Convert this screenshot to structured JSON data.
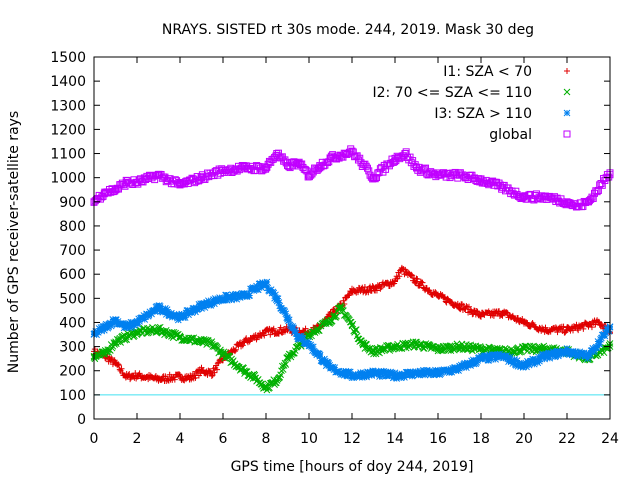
{
  "chart_data": {
    "type": "scatter",
    "title": "NRAYS. SISTED rt 30s mode. 244, 2019. Mask 30 deg",
    "xlabel": "GPS time [hours of doy 244, 2019]",
    "ylabel": "Number of GPS receiver-satellite rays",
    "xlim": [
      0,
      24
    ],
    "ylim": [
      0,
      1500
    ],
    "xticks": [
      0,
      2,
      4,
      6,
      8,
      10,
      12,
      14,
      16,
      18,
      20,
      22,
      24
    ],
    "yticks": [
      0,
      100,
      200,
      300,
      400,
      500,
      600,
      700,
      800,
      900,
      1000,
      1100,
      1200,
      1300,
      1400,
      1500
    ],
    "legend_position": "top-right",
    "reference_line": {
      "y": 100,
      "color": "#40e0f0"
    },
    "series": [
      {
        "name": "I1: SZA < 70",
        "marker": "+",
        "color": "#e00000",
        "x": [
          0,
          0.5,
          1,
          1.5,
          2,
          3,
          4,
          4.5,
          5,
          5.5,
          6,
          7,
          8,
          9,
          10,
          10.5,
          11,
          11.5,
          12,
          13,
          14,
          14.3,
          15,
          16,
          17,
          18,
          19,
          20,
          21,
          22,
          23,
          23.5,
          24
        ],
        "values": [
          280,
          260,
          230,
          175,
          180,
          165,
          175,
          170,
          200,
          190,
          250,
          320,
          360,
          370,
          360,
          380,
          430,
          470,
          530,
          540,
          570,
          620,
          570,
          510,
          470,
          430,
          440,
          400,
          370,
          370,
          390,
          400,
          360
        ]
      },
      {
        "name": "I2: 70 <= SZA <= 110",
        "marker": "x",
        "color": "#00b000",
        "x": [
          0,
          0.5,
          1,
          1.5,
          2,
          3,
          4,
          5,
          5.5,
          6,
          7,
          7.5,
          8,
          8.5,
          9,
          10,
          11,
          11.5,
          12,
          12.5,
          13,
          14,
          15,
          16,
          17,
          18,
          19,
          20,
          21,
          22,
          23,
          24
        ],
        "values": [
          260,
          270,
          320,
          340,
          360,
          370,
          340,
          320,
          310,
          270,
          200,
          170,
          130,
          160,
          250,
          350,
          410,
          460,
          390,
          310,
          280,
          300,
          310,
          290,
          300,
          290,
          280,
          290,
          290,
          280,
          250,
          300
        ]
      },
      {
        "name": "I3: SZA > 110",
        "marker": "*",
        "color": "#0080f0",
        "x": [
          0,
          0.5,
          1,
          1.5,
          2,
          3,
          4,
          5,
          6,
          7,
          7.5,
          8,
          8.5,
          9,
          9.5,
          10,
          10.5,
          11,
          12,
          13,
          14,
          15,
          16,
          17,
          18,
          19,
          20,
          21,
          22,
          23,
          24
        ],
        "values": [
          350,
          380,
          410,
          380,
          400,
          460,
          420,
          470,
          500,
          510,
          540,
          560,
          500,
          420,
          340,
          310,
          260,
          210,
          180,
          190,
          180,
          190,
          190,
          210,
          250,
          260,
          220,
          260,
          280,
          260,
          380
        ]
      },
      {
        "name": "global",
        "marker": "square",
        "color": "#c000ff",
        "x": [
          0,
          0.5,
          1,
          1.5,
          2,
          3,
          4,
          5,
          6,
          7,
          8,
          8.5,
          9,
          9.5,
          10,
          10.5,
          11,
          12,
          13,
          14,
          14.5,
          15,
          16,
          17,
          18,
          19,
          20,
          21,
          22,
          22.5,
          23,
          24
        ],
        "values": [
          900,
          940,
          950,
          980,
          980,
          1010,
          970,
          1000,
          1030,
          1040,
          1040,
          1100,
          1050,
          1060,
          1010,
          1050,
          1080,
          1110,
          1000,
          1080,
          1100,
          1040,
          1010,
          1010,
          990,
          960,
          920,
          920,
          900,
          880,
          900,
          1020
        ]
      }
    ]
  }
}
